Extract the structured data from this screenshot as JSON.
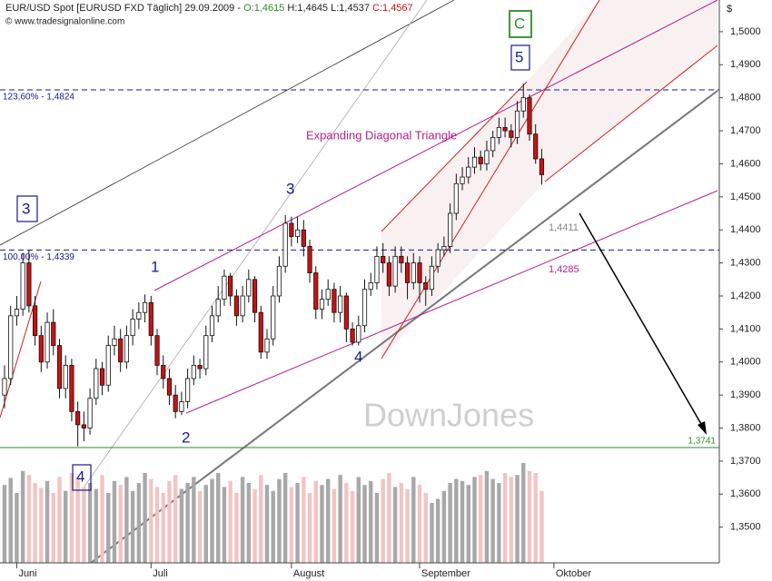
{
  "chart_data": {
    "type": "candlestick",
    "header": {
      "title": "EUR/USD Spot [EURUSD FXD  Täglich] 29.09.2009 - ",
      "open": "O:1,4615",
      "high": "H:1,4645",
      "low": "L:1,4537",
      "close": "C:1,4567"
    },
    "source": "© www.tradesignalonline.com",
    "currency": "$",
    "watermark": "DownJones",
    "pattern_label": "Expanding Diagonal Triangle",
    "wave_labels": [
      "3",
      "1",
      "2",
      "3",
      "4",
      "5",
      "C",
      "4"
    ],
    "line_labels": [
      "1,4411",
      "1,4285"
    ],
    "levels": [
      {
        "label": "123,60% - 1,4824",
        "value": 1.4824,
        "color": "#1a1a8c"
      },
      {
        "label": "100,00% - 1,4339",
        "value": 1.4339,
        "color": "#1a1a8c"
      },
      {
        "label": "1,3741",
        "value": 1.3741,
        "color": "#2e8b2e"
      }
    ],
    "up_color": "#ffffff",
    "down_color": "#cc1111",
    "volume_up_color": "#a8a8a8",
    "volume_down_color": "#f2c4c4",
    "xlim": [
      -0.744,
      117.1
    ],
    "xticks": [
      {
        "value": 2,
        "label": "Juni"
      },
      {
        "value": 24,
        "label": "Juli"
      },
      {
        "value": 47,
        "label": "August"
      },
      {
        "value": 68,
        "label": "September"
      },
      {
        "value": 90,
        "label": "Oktober"
      }
    ],
    "ylim": [
      1.3392,
      1.5096
    ],
    "yticks": [
      {
        "value": 1.35,
        "label": "1,3500"
      },
      {
        "value": 1.36,
        "label": "1,3600"
      },
      {
        "value": 1.37,
        "label": "1,3700"
      },
      {
        "value": 1.38,
        "label": "1,3800"
      },
      {
        "value": 1.39,
        "label": "1,3900"
      },
      {
        "value": 1.4,
        "label": "1,4000"
      },
      {
        "value": 1.41,
        "label": "1,4100"
      },
      {
        "value": 1.42,
        "label": "1,4200"
      },
      {
        "value": 1.43,
        "label": "1,4300"
      },
      {
        "value": 1.44,
        "label": "1,4400"
      },
      {
        "value": 1.45,
        "label": "1,4500"
      },
      {
        "value": 1.46,
        "label": "1,4600"
      },
      {
        "value": 1.47,
        "label": "1,4700"
      },
      {
        "value": 1.48,
        "label": "1,4800"
      },
      {
        "value": 1.49,
        "label": "1,4900"
      },
      {
        "value": 1.5,
        "label": "1,5000"
      }
    ],
    "open": [
      1.39,
      1.395,
      1.414,
      1.416,
      1.43,
      1.417,
      1.408,
      1.4,
      1.412,
      1.405,
      1.392,
      1.399,
      1.385,
      1.381,
      1.38,
      1.389,
      1.398,
      1.393,
      1.405,
      1.407,
      1.4,
      1.408,
      1.413,
      1.415,
      1.418,
      1.408,
      1.399,
      1.395,
      1.39,
      1.385,
      1.388,
      1.395,
      1.399,
      1.398,
      1.408,
      1.414,
      1.419,
      1.426,
      1.42,
      1.414,
      1.42,
      1.425,
      1.415,
      1.403,
      1.407,
      1.42,
      1.429,
      1.442,
      1.438,
      1.44,
      1.435,
      1.427,
      1.416,
      1.419,
      1.422,
      1.415,
      1.42,
      1.41,
      1.406,
      1.411,
      1.422,
      1.424,
      1.432,
      1.43,
      1.423,
      1.432,
      1.43,
      1.424,
      1.43,
      1.424,
      1.422,
      1.429,
      1.434,
      1.435,
      1.445,
      1.454,
      1.456,
      1.459,
      1.462,
      1.46,
      1.464,
      1.468,
      1.471,
      1.47,
      1.468,
      1.476,
      1.48,
      1.469,
      1.4615
    ],
    "high": [
      1.399,
      1.417,
      1.42,
      1.433,
      1.4339,
      1.42,
      1.411,
      1.415,
      1.416,
      1.407,
      1.402,
      1.401,
      1.388,
      1.385,
      1.392,
      1.401,
      1.4,
      1.408,
      1.411,
      1.41,
      1.411,
      1.416,
      1.418,
      1.4205,
      1.42,
      1.41,
      1.402,
      1.398,
      1.393,
      1.391,
      1.398,
      1.402,
      1.401,
      1.411,
      1.417,
      1.423,
      1.428,
      1.427,
      1.422,
      1.423,
      1.428,
      1.426,
      1.417,
      1.41,
      1.423,
      1.432,
      1.4445,
      1.444,
      1.444,
      1.443,
      1.437,
      1.429,
      1.422,
      1.425,
      1.424,
      1.423,
      1.421,
      1.412,
      1.414,
      1.425,
      1.427,
      1.435,
      1.436,
      1.432,
      1.435,
      1.435,
      1.432,
      1.433,
      1.432,
      1.426,
      1.432,
      1.436,
      1.438,
      1.448,
      1.457,
      1.459,
      1.462,
      1.465,
      1.464,
      1.467,
      1.47,
      1.474,
      1.474,
      1.472,
      1.479,
      1.4843,
      1.481,
      1.472,
      1.4645
    ],
    "low": [
      1.386,
      1.393,
      1.411,
      1.414,
      1.415,
      1.405,
      1.397,
      1.398,
      1.402,
      1.389,
      1.389,
      1.382,
      1.3745,
      1.376,
      1.378,
      1.387,
      1.39,
      1.391,
      1.402,
      1.397,
      1.398,
      1.405,
      1.41,
      1.412,
      1.405,
      1.396,
      1.392,
      1.387,
      1.383,
      1.384,
      1.386,
      1.393,
      1.395,
      1.396,
      1.406,
      1.412,
      1.417,
      1.417,
      1.411,
      1.412,
      1.418,
      1.412,
      1.401,
      1.401,
      1.405,
      1.418,
      1.427,
      1.435,
      1.436,
      1.432,
      1.424,
      1.413,
      1.413,
      1.417,
      1.412,
      1.412,
      1.406,
      1.405,
      1.405,
      1.409,
      1.42,
      1.422,
      1.427,
      1.42,
      1.421,
      1.427,
      1.419,
      1.422,
      1.418,
      1.417,
      1.42,
      1.427,
      1.432,
      1.433,
      1.443,
      1.452,
      1.454,
      1.457,
      1.458,
      1.458,
      1.462,
      1.466,
      1.468,
      1.465,
      1.466,
      1.474,
      1.467,
      1.46,
      1.4537
    ],
    "close": [
      1.395,
      1.414,
      1.416,
      1.43,
      1.417,
      1.408,
      1.4,
      1.412,
      1.405,
      1.392,
      1.399,
      1.385,
      1.381,
      1.38,
      1.389,
      1.398,
      1.393,
      1.405,
      1.407,
      1.4,
      1.408,
      1.413,
      1.415,
      1.418,
      1.408,
      1.399,
      1.395,
      1.39,
      1.385,
      1.388,
      1.395,
      1.399,
      1.398,
      1.408,
      1.414,
      1.419,
      1.426,
      1.42,
      1.414,
      1.42,
      1.425,
      1.415,
      1.403,
      1.407,
      1.42,
      1.429,
      1.442,
      1.438,
      1.44,
      1.435,
      1.427,
      1.416,
      1.419,
      1.422,
      1.415,
      1.42,
      1.41,
      1.406,
      1.411,
      1.422,
      1.424,
      1.432,
      1.43,
      1.423,
      1.432,
      1.43,
      1.424,
      1.43,
      1.424,
      1.422,
      1.429,
      1.434,
      1.435,
      1.445,
      1.454,
      1.456,
      1.459,
      1.462,
      1.46,
      1.464,
      1.468,
      1.471,
      1.47,
      1.468,
      1.476,
      1.48,
      1.469,
      1.4615,
      1.4567
    ],
    "volume": [
      78,
      85,
      70,
      92,
      88,
      80,
      75,
      82,
      70,
      86,
      72,
      90,
      84,
      76,
      80,
      74,
      88,
      70,
      82,
      78,
      86,
      72,
      80,
      90,
      84,
      76,
      70,
      82,
      88,
      74,
      80,
      86,
      72,
      78,
      84,
      90,
      76,
      82,
      70,
      86,
      80,
      74,
      88,
      78,
      72,
      84,
      90,
      76,
      80,
      86,
      70,
      82,
      78,
      84,
      74,
      88,
      80,
      72,
      86,
      78,
      82,
      70,
      84,
      90,
      76,
      80,
      74,
      86,
      78,
      70,
      60,
      64,
      72,
      80,
      84,
      82,
      78,
      86,
      88,
      92,
      84,
      80,
      90,
      86,
      88,
      100,
      92,
      90,
      72
    ]
  }
}
